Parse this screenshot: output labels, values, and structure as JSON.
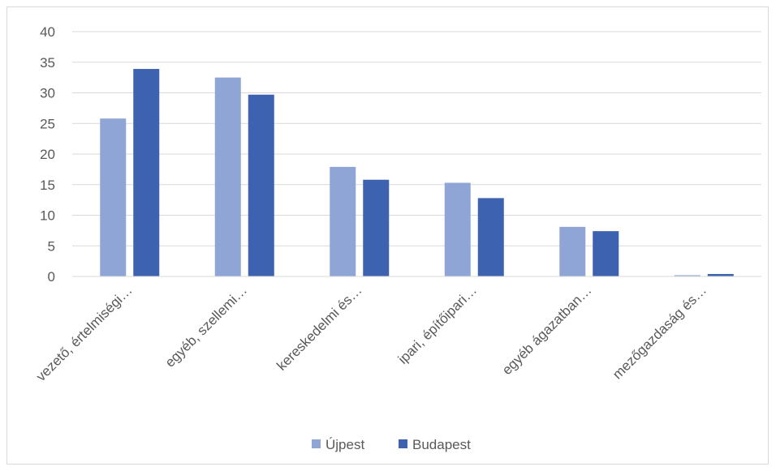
{
  "chart_data": {
    "type": "bar",
    "categories": [
      "vezető, értelmiségi…",
      "egyéb, szellemi…",
      "kereskedelmi és…",
      "ipari, építőipari…",
      "egyéb ágazatban…",
      "mezőgazdaság és…"
    ],
    "series": [
      {
        "name": "Újpest",
        "color": "#8fa5d6",
        "values": [
          25.8,
          32.5,
          17.9,
          15.3,
          8.1,
          0.2
        ]
      },
      {
        "name": "Budapest",
        "color": "#3d62b0",
        "values": [
          33.9,
          29.7,
          15.8,
          12.8,
          7.4,
          0.4
        ]
      }
    ],
    "ylim": [
      0,
      40
    ],
    "yticks": [
      0,
      5,
      10,
      15,
      20,
      25,
      30,
      35,
      40
    ],
    "grid": true,
    "legend": "bottom"
  }
}
